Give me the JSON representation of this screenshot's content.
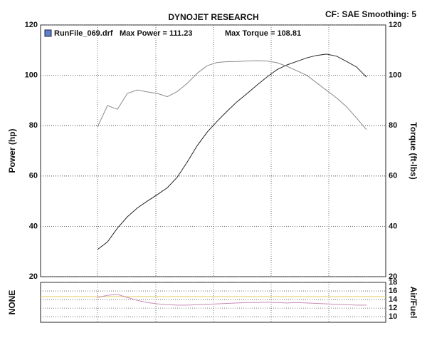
{
  "header": {
    "title": "DYNOJET RESEARCH",
    "settings": "CF: SAE  Smoothing: 5"
  },
  "legend": {
    "name": "RunFile_069.drf",
    "max_power": "Max Power = 111.23",
    "max_torque": "Max Torque = 108.81",
    "color": "#5b7fd1"
  },
  "chart_data": [
    {
      "type": "line",
      "ylabel": "Power (hp)",
      "y2label": "Torque (ft-lbs)",
      "categories": [
        null,
        null,
        null,
        null,
        null,
        null,
        null,
        null,
        null,
        null,
        null,
        null,
        null,
        null,
        null,
        null,
        null,
        null,
        null,
        null,
        null,
        null,
        null,
        null,
        null,
        null,
        null,
        null
      ],
      "ylim": [
        20,
        120
      ],
      "yticks": [
        20,
        40,
        60,
        80,
        100,
        120
      ],
      "y2lim": [
        20,
        120
      ],
      "y2ticks": [
        20,
        40,
        60,
        80,
        100,
        120
      ],
      "grid": true,
      "series": [
        {
          "color": "#222222",
          "values": [
            30.8,
            33.8,
            39.3,
            43.8,
            47.3,
            50,
            52.6,
            55.3,
            59.5,
            65.5,
            72,
            77.4,
            81.7,
            85.7,
            89.5,
            92.7,
            96.1,
            99.3,
            102.2,
            104.1,
            105.5,
            106.9,
            107.9,
            108.4,
            107.6,
            105.5,
            103.3,
            99.3
          ]
        },
        {
          "color": "#8a8a8a",
          "axis": "y2",
          "values": [
            79.5,
            88,
            86.5,
            92.8,
            94.2,
            93.4,
            92.8,
            91.5,
            93.5,
            96.8,
            100.8,
            103.8,
            105.1,
            105.4,
            105.5,
            105.7,
            105.8,
            105.7,
            105,
            103.6,
            101.8,
            100,
            97,
            94,
            91,
            87.5,
            83,
            78.4
          ]
        }
      ]
    },
    {
      "type": "line",
      "ylabel": "NONE",
      "y2label": "Air/Fuel",
      "categories": [
        null,
        null,
        null,
        null,
        null,
        null,
        null,
        null,
        null,
        null,
        null,
        null,
        null,
        null,
        null,
        null,
        null,
        null,
        null,
        null,
        null,
        null,
        null,
        null,
        null,
        null,
        null,
        null
      ],
      "y2lim": [
        8.7,
        18
      ],
      "y2ticks": [
        10,
        12,
        14,
        16,
        18
      ],
      "grid": true,
      "reference_lines": [
        {
          "value": 14.7,
          "color": "#e2cf6a"
        }
      ],
      "series": [
        {
          "color": "#c98ab8",
          "axis": "y2",
          "values": [
            14.5,
            15,
            15.2,
            14.5,
            13.8,
            13.3,
            13,
            12.8,
            12.7,
            12.7,
            12.8,
            12.9,
            13,
            13.1,
            13.2,
            13.3,
            13.3,
            13.4,
            13.3,
            13.2,
            13.3,
            13.2,
            13.1,
            13,
            12.9,
            12.8,
            12.7,
            12.7
          ]
        }
      ]
    }
  ]
}
